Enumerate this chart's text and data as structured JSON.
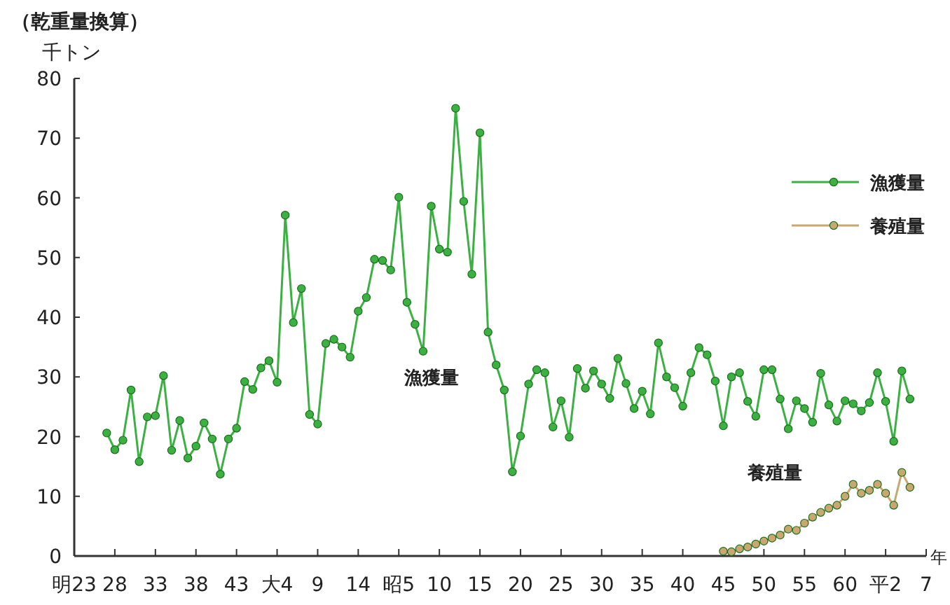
{
  "chart_data": {
    "type": "line",
    "title": "（乾重量換算）",
    "ylabel": "千トン",
    "xlabel": "年",
    "categories": [
      "明23",
      null,
      null,
      null,
      null,
      "28",
      null,
      null,
      null,
      null,
      "33",
      null,
      null,
      null,
      null,
      "38",
      null,
      null,
      null,
      null,
      "43",
      null,
      null,
      null,
      null,
      "大4",
      null,
      null,
      null,
      null,
      "9",
      null,
      null,
      null,
      null,
      "14",
      null,
      null,
      null,
      null,
      "昭5",
      null,
      null,
      null,
      null,
      "10",
      null,
      null,
      null,
      null,
      "15",
      null,
      null,
      null,
      null,
      "20",
      null,
      null,
      null,
      null,
      "25",
      null,
      null,
      null,
      null,
      "30",
      null,
      null,
      null,
      null,
      "35",
      null,
      null,
      null,
      null,
      "40",
      null,
      null,
      null,
      null,
      "45",
      null,
      null,
      null,
      null,
      "50",
      null,
      null,
      null,
      null,
      "55",
      null,
      null,
      null,
      null,
      "60",
      null,
      null,
      null,
      null,
      "平2",
      null,
      null,
      null,
      null,
      "7"
    ],
    "ylim": [
      0,
      80
    ],
    "yticks": [
      0,
      10,
      20,
      30,
      40,
      50,
      60,
      70,
      80
    ],
    "grid": false,
    "legend": "right",
    "marker": "circle",
    "line_style": "solid",
    "series": [
      {
        "name": "漁獲量",
        "color": "#3cb043",
        "values": [
          null,
          null,
          null,
          null,
          20.6,
          17.8,
          19.4,
          27.8,
          15.8,
          23.3,
          23.5,
          30.2,
          17.7,
          22.7,
          16.4,
          18.4,
          22.3,
          19.6,
          13.7,
          19.6,
          21.4,
          29.2,
          27.9,
          31.5,
          32.7,
          29.1,
          57.1,
          39.1,
          44.8,
          23.7,
          22.1,
          35.6,
          36.3,
          35.0,
          33.3,
          41.0,
          43.3,
          49.7,
          49.5,
          47.9,
          60.1,
          42.5,
          38.8,
          34.3,
          58.6,
          51.4,
          50.9,
          75.0,
          59.4,
          47.2,
          70.9,
          37.5,
          32.0,
          27.8,
          14.1,
          20.1,
          28.8,
          31.2,
          30.7,
          21.6,
          26.0,
          19.9,
          31.4,
          28.1,
          31.0,
          28.8,
          26.4,
          33.1,
          28.9,
          24.7,
          27.6,
          23.8,
          35.7,
          30.0,
          28.2,
          25.1,
          30.7,
          34.9,
          33.7,
          29.3,
          21.8,
          30.0,
          30.7,
          25.9,
          23.4,
          31.2,
          31.2,
          26.3,
          21.3,
          26.0,
          24.7,
          22.4,
          30.6,
          25.3,
          22.6,
          26.0,
          25.5,
          24.3,
          25.7,
          30.7,
          25.9,
          19.2,
          31.0,
          26.3,
          null,
          null
        ]
      },
      {
        "name": "養殖量",
        "color": "#c8a870",
        "values": [
          null,
          null,
          null,
          null,
          null,
          null,
          null,
          null,
          null,
          null,
          null,
          null,
          null,
          null,
          null,
          null,
          null,
          null,
          null,
          null,
          null,
          null,
          null,
          null,
          null,
          null,
          null,
          null,
          null,
          null,
          null,
          null,
          null,
          null,
          null,
          null,
          null,
          null,
          null,
          null,
          null,
          null,
          null,
          null,
          null,
          null,
          null,
          null,
          null,
          null,
          null,
          null,
          null,
          null,
          null,
          null,
          null,
          null,
          null,
          null,
          null,
          null,
          null,
          null,
          null,
          null,
          null,
          null,
          null,
          null,
          null,
          null,
          null,
          null,
          null,
          null,
          null,
          null,
          null,
          null,
          0.8,
          0.7,
          1.2,
          1.5,
          2.0,
          2.5,
          3.0,
          3.5,
          4.5,
          4.3,
          5.5,
          6.5,
          7.3,
          8.0,
          8.5,
          10.0,
          12.0,
          10.5,
          11.0,
          12.0,
          10.5,
          8.5,
          14.0,
          11.5,
          null,
          null
        ]
      }
    ],
    "annotations": [
      "漁獲量",
      "養殖量"
    ]
  }
}
